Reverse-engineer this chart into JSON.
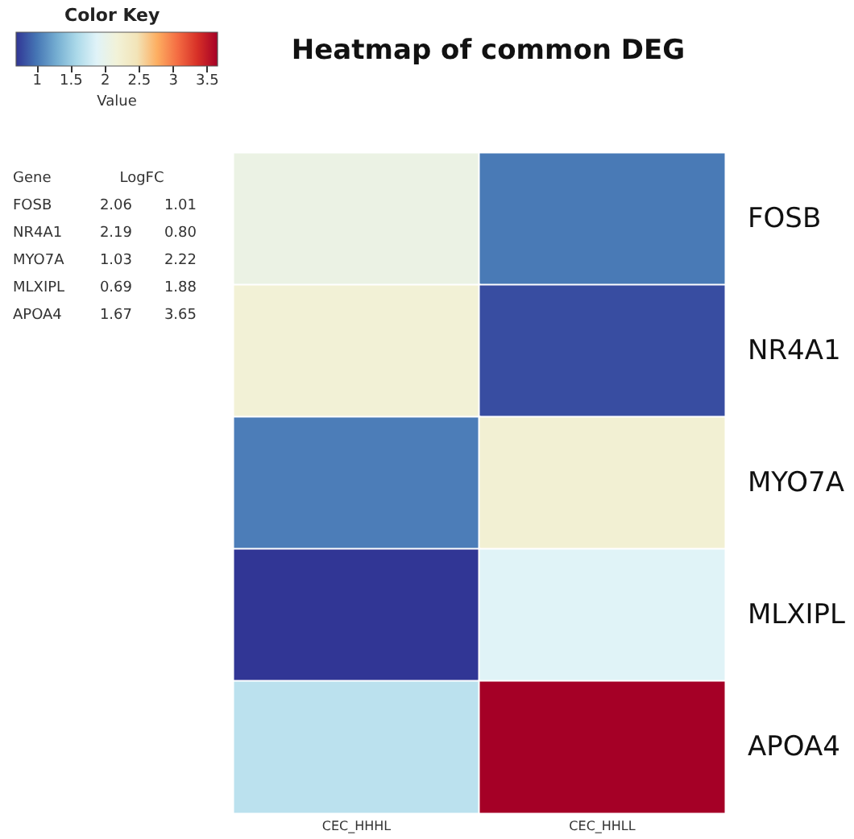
{
  "chart_data": [
    {
      "type": "heatmap",
      "title": "Heatmap of common DEG",
      "legend_title": "Color Key",
      "clabel": "Value",
      "categories": [
        "CEC_HHHL",
        "CEC_HHLL"
      ],
      "y_categories": [
        "FOSB",
        "NR4A1",
        "MYO7A",
        "MLXIPL",
        "APOA4"
      ],
      "cells": [
        [
          2.06,
          1.01
        ],
        [
          2.19,
          0.8
        ],
        [
          1.03,
          2.22
        ],
        [
          0.69,
          1.88
        ],
        [
          1.67,
          3.65
        ]
      ],
      "clim": [
        0.69,
        3.65
      ],
      "cticks": [
        1,
        1.5,
        2,
        2.5,
        3,
        3.5
      ]
    },
    {
      "type": "other",
      "annotations": [
        "Gene",
        "LogFC",
        "FOSB",
        "2.06",
        "1.01",
        "NR4A1",
        "2.19",
        "0.80",
        "MYO7A",
        "1.03",
        "2.22",
        "MLXIPL",
        "0.69",
        "1.88",
        "APOA4",
        "1.67",
        "3.65"
      ]
    }
  ]
}
